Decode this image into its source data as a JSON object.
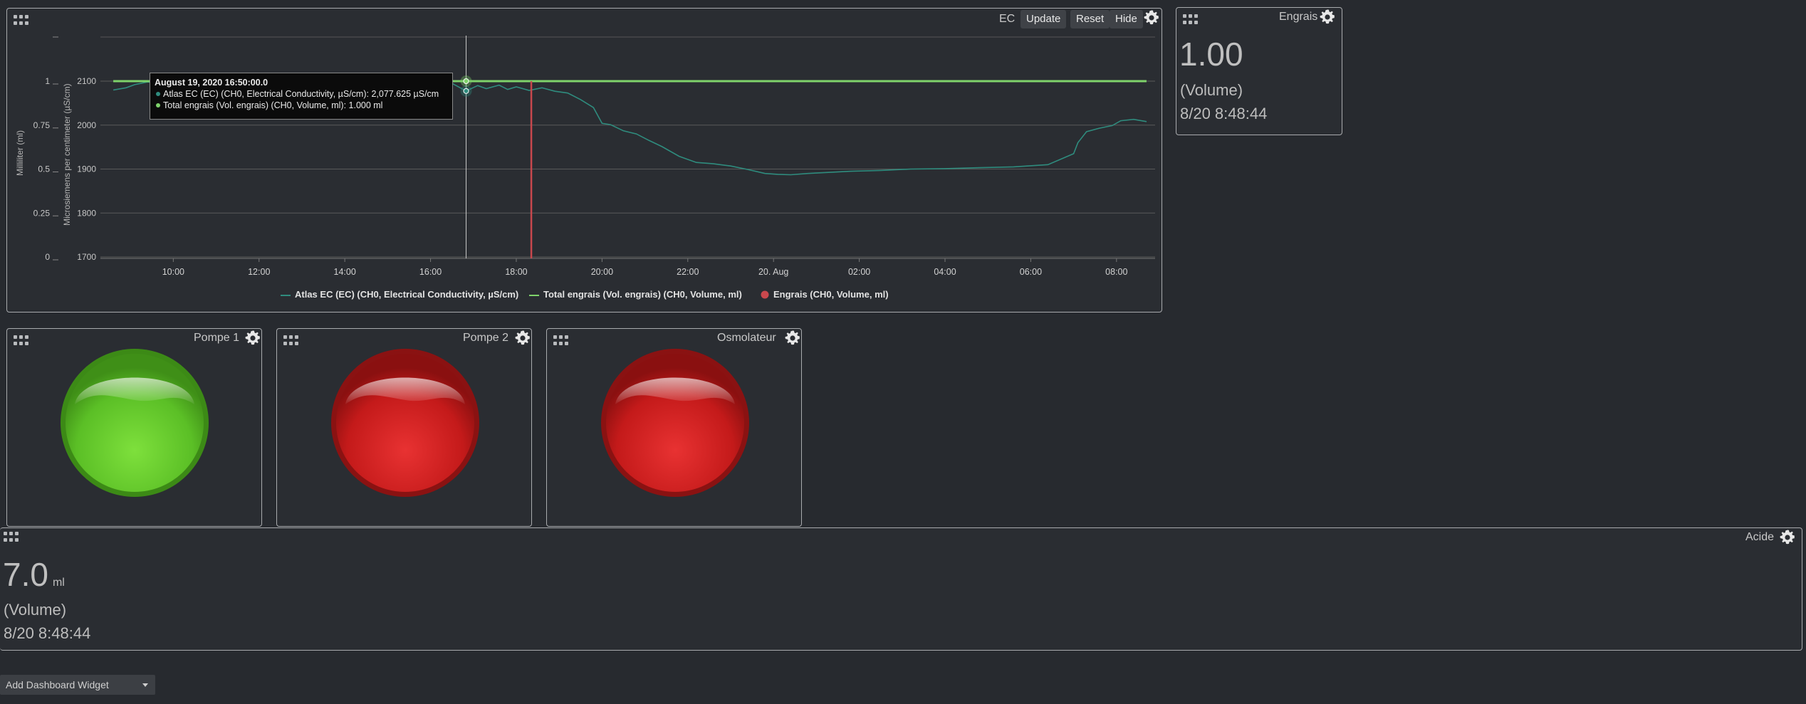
{
  "ec_widget": {
    "title": "EC",
    "buttons": {
      "update": "Update",
      "reset": "Reset",
      "hide": "Hide"
    },
    "tooltip": {
      "date": "August 19, 2020 16:50:00.0",
      "line1": "Atlas EC (EC) (CH0, Electrical Conductivity, µS/cm): 2,077.625 µS/cm",
      "line2": "Total engrais (Vol. engrais) (CH0, Volume, ml): 1.000 ml"
    },
    "legend": {
      "s1": "Atlas EC (EC) (CH0, Electrical Conductivity, µS/cm)",
      "s2": "Total engrais (Vol. engrais) (CH0, Volume, ml)",
      "s3": "Engrais (CH0, Volume, ml)"
    },
    "colors": {
      "ec": "#2f8c7e",
      "total": "#7fd36b",
      "engrais": "#c9484d",
      "crosshair": "#c9c9c9"
    }
  },
  "chart_data": {
    "type": "line",
    "ylabel_left": "Milliliter (ml)",
    "ylabel_right": "Microsiemens per centimeter (µS/cm)",
    "y_ml_ticks": [
      "0",
      "0.25",
      "0.5",
      "0.75",
      "1"
    ],
    "y_ec_ticks": [
      "1700",
      "1800",
      "1900",
      "2000",
      "2100"
    ],
    "ylim_ml": [
      0,
      1
    ],
    "ylim_ec": [
      1700,
      2100
    ],
    "x_ticks": [
      "10:00",
      "12:00",
      "14:00",
      "16:00",
      "18:00",
      "20:00",
      "22:00",
      "20. Aug",
      "02:00",
      "04:00",
      "06:00",
      "08:00"
    ],
    "x_tick_hours": [
      10,
      12,
      14,
      16,
      18,
      20,
      22,
      24,
      26,
      28,
      30,
      32
    ],
    "xlim_hours": [
      8.3,
      32.9
    ],
    "series": [
      {
        "name": "Atlas EC (EC) (CH0, Electrical Conductivity, µS/cm)",
        "axis": "ec",
        "x_hours": [
          8.6,
          8.9,
          9.1,
          9.4,
          9.7,
          10.0,
          10.3,
          10.6,
          11.0,
          11.4,
          11.8,
          12.2,
          12.6,
          13.0,
          13.4,
          13.8,
          14.2,
          14.6,
          15.0,
          15.4,
          15.8,
          16.2,
          16.5,
          16.83,
          17.1,
          17.3,
          17.6,
          17.8,
          18.0,
          18.3,
          18.6,
          18.9,
          19.2,
          19.5,
          19.8,
          20.0,
          20.2,
          20.5,
          20.8,
          21.1,
          21.4,
          21.8,
          22.2,
          22.6,
          23.0,
          23.4,
          23.8,
          24.1,
          24.4,
          24.8,
          25.2,
          25.8,
          26.5,
          27.2,
          28.0,
          28.8,
          29.6,
          30.4,
          31.0,
          31.1,
          31.3,
          31.6,
          31.9,
          32.1,
          32.4,
          32.7
        ],
        "values": [
          2080,
          2085,
          2092,
          2098,
          2095,
          2100,
          2097,
          2105,
          2102,
          2108,
          2100,
          2105,
          2102,
          2103,
          2100,
          2104,
          2101,
          2103,
          2100,
          2102,
          2098,
          2101,
          2095,
          2077.6,
          2090,
          2083,
          2091,
          2081,
          2087,
          2079,
          2085,
          2077,
          2073,
          2058,
          2040,
          2004,
          2001,
          1987,
          1980,
          1965,
          1951,
          1929,
          1915,
          1912,
          1907,
          1899,
          1890,
          1888,
          1887,
          1890,
          1892,
          1895,
          1897,
          1900,
          1901,
          1903,
          1905,
          1910,
          1935,
          1960,
          1985,
          1993,
          1999,
          2010,
          2013,
          2008
        ]
      },
      {
        "name": "Total engrais (Vol. engrais) (CH0, Volume, ml)",
        "axis": "ml",
        "x_hours": [
          8.6,
          32.7
        ],
        "values": [
          1.0,
          1.0
        ]
      },
      {
        "name": "Engrais (CH0, Volume, ml)",
        "axis": "ml",
        "x_hours": [
          18.35
        ],
        "values": [
          1.0
        ]
      }
    ],
    "crosshair_hour": 16.83
  },
  "engrais_widget": {
    "title": "Engrais",
    "value": "1.00",
    "unit_label": "(Volume)",
    "timestamp": "8/20 8:48:44"
  },
  "pompe1_widget": {
    "title": "Pompe 1",
    "state_color": "#5fc22a"
  },
  "pompe2_widget": {
    "title": "Pompe 2",
    "state_color": "#cc1d1d"
  },
  "osmo_widget": {
    "title": "Osmolateur",
    "state_color": "#cc1d1d"
  },
  "acide_widget": {
    "title": "Acide",
    "value": "7.0",
    "unit": "ml",
    "unit_label": "(Volume)",
    "timestamp": "8/20 8:48:44"
  },
  "footer": {
    "add_widget_label": "Add Dashboard Widget"
  }
}
